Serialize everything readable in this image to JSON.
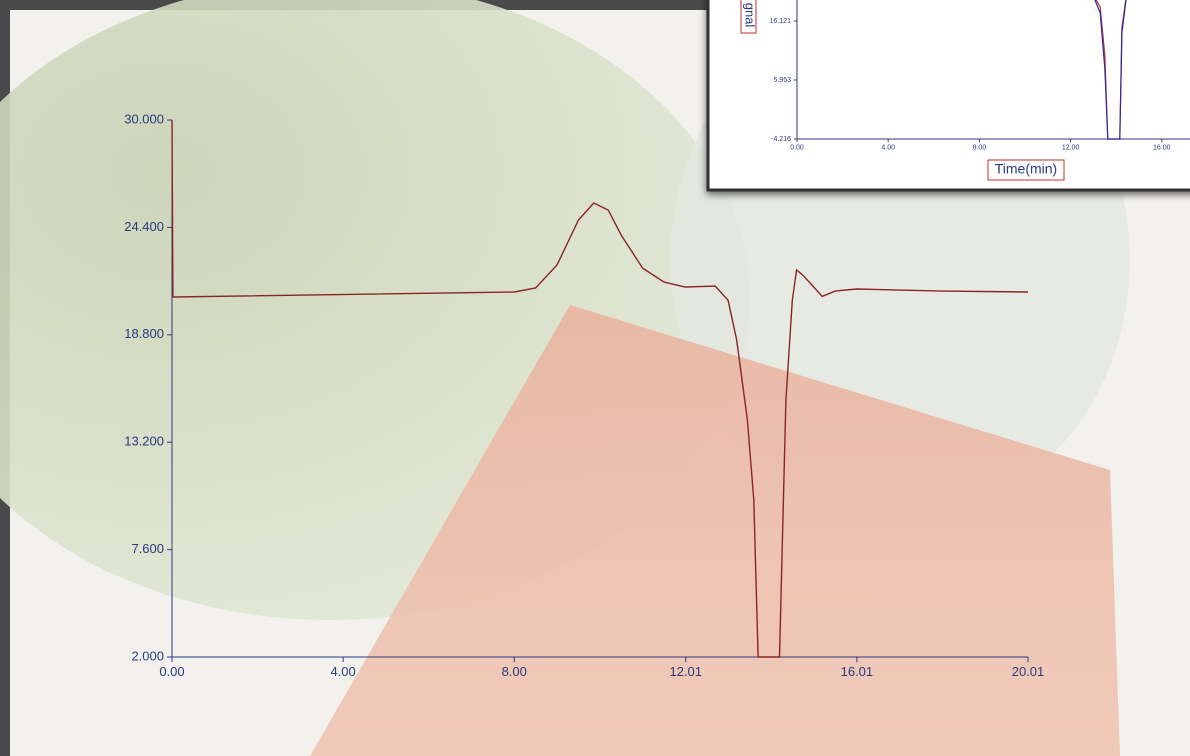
{
  "chart_data": [
    {
      "type": "line",
      "x": [
        0,
        0.02,
        8,
        8.5,
        9,
        9.5,
        9.86,
        10.2,
        10.5,
        11,
        11.5,
        12,
        12.7,
        13,
        13.2,
        13.45,
        13.6,
        13.7,
        14.2,
        14.35,
        14.5,
        14.6,
        14.75,
        15.2,
        15.5,
        16,
        18,
        20.01
      ],
      "series": [
        {
          "color": "#8b2525",
          "values": [
            30,
            20.77,
            21.03,
            21.24,
            22.44,
            24.78,
            25.67,
            25.3,
            24.0,
            22.28,
            21.55,
            21.29,
            21.34,
            20.6,
            18.53,
            14.36,
            10.19,
            2,
            2,
            15.4,
            20.6,
            22.18,
            21.9,
            20.8,
            21.08,
            21.19,
            21.08,
            21.03
          ]
        }
      ],
      "xlim": [
        0,
        20.01
      ],
      "xticks": [
        {
          "value": 0,
          "label": "0.00"
        },
        {
          "value": 4,
          "label": "4.00"
        },
        {
          "value": 8,
          "label": "8.00"
        },
        12.01,
        16.01,
        20.01
      ],
      "ylim": [
        2,
        30
      ],
      "yticks": [
        {
          "value": 2,
          "label": "2.000"
        },
        {
          "value": 7.6,
          "label": "7.600"
        },
        {
          "value": 13.2,
          "label": "13.200"
        },
        {
          "value": 18.8,
          "label": "18.800"
        },
        {
          "value": 24.4,
          "label": "24.400"
        },
        {
          "value": 30,
          "label": "30.000"
        }
      ]
    },
    {
      "type": "line",
      "x_label": "Time(min)",
      "y_label": "gnal",
      "x": [
        0,
        8,
        9.9,
        12,
        13,
        13.3,
        13.5,
        13.63,
        14.16,
        14.25,
        14.5,
        16,
        20
      ],
      "series": [
        {
          "color": "#c0302a",
          "values": [
            20.8,
            21,
            25.7,
            21.3,
            20.6,
            18.5,
            10.3,
            -4.216,
            -4.216,
            15,
            22,
            21.2,
            21
          ]
        },
        {
          "color": "#2a2aa8",
          "values": [
            20.8,
            21,
            25.7,
            21.3,
            20.4,
            17.5,
            8,
            -4.216,
            -4.216,
            14,
            22,
            21.2,
            21
          ]
        }
      ],
      "xlim": [
        0,
        20
      ],
      "xticks": [
        {
          "value": 0,
          "label": "0.00"
        },
        {
          "value": 4,
          "label": "4.00"
        },
        {
          "value": 8,
          "label": "8.00"
        },
        {
          "value": 12,
          "label": "12.00"
        },
        {
          "value": 16,
          "label": "16.00"
        }
      ],
      "ylim": [
        -4.216,
        26.289
      ],
      "yticks": [
        -4.216,
        5.953,
        16.121
      ]
    }
  ]
}
